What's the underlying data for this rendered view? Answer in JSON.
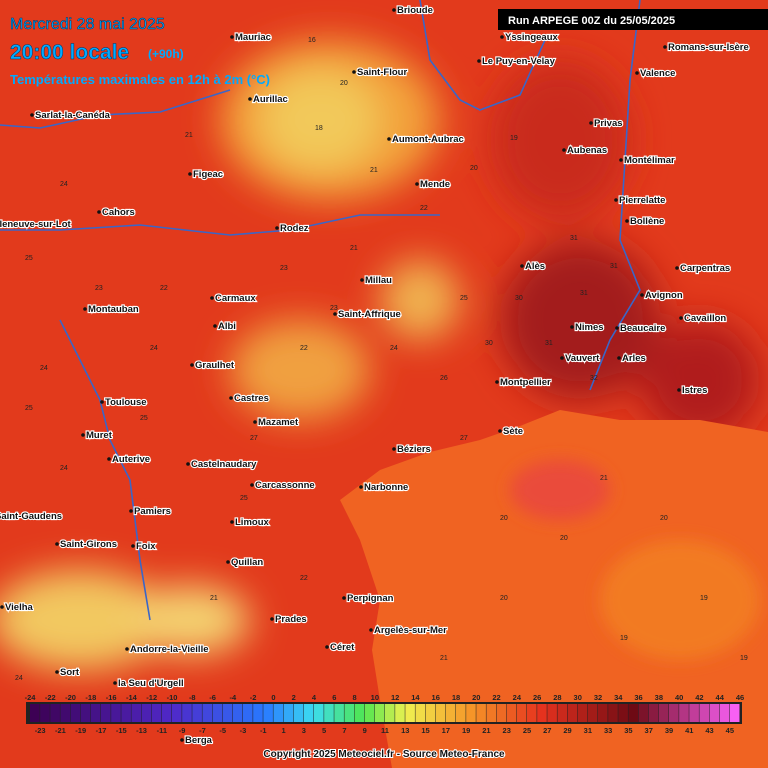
{
  "header": {
    "date": "Mercredi 28 mai 2025",
    "time": "20:00 locale",
    "offset": "(+90h)",
    "subtitle": "Températures maximales en 12h à 2m (°C)",
    "run": "Run ARPEGE 00Z du 25/05/2025"
  },
  "cities": [
    "Brioude",
    "Mauriac",
    "Yssingeaux",
    "Romans-sur-Isère",
    "Saint-Flour",
    "Le Puy-en-Velay",
    "Valence",
    "Aurillac",
    "Sarlat-la-Canéda",
    "Aumont-Aubrac",
    "Privas",
    "Aubenas",
    "Montélimar",
    "Figeac",
    "Mende",
    "Pierrelatte",
    "Cahors",
    "Villeneuve-sur-Lot",
    "Rodez",
    "Bollène",
    "Alès",
    "Carpentras",
    "Millau",
    "Avignon",
    "Carmaux",
    "Montauban",
    "Saint-Affrique",
    "Cavaillon",
    "Albi",
    "Nimes",
    "Beaucaire",
    "Vauvert",
    "Arles",
    "Graulhet",
    "Montpellier",
    "Istres",
    "Toulouse",
    "Castres",
    "Mazamet",
    "Sète",
    "Muret",
    "Béziers",
    "Auterive",
    "Castelnaudary",
    "Carcassonne",
    "Narbonne",
    "Pamiers",
    "Saint-Gaudens",
    "Limoux",
    "Saint-Girons",
    "Foix",
    "Quillan",
    "Perpignan",
    "Vielha",
    "Prades",
    "Argelès-sur-Mer",
    "Andorre-la-Vieille",
    "Céret",
    "Sort",
    "la Seu d'Urgell",
    "Berga"
  ],
  "temperatures": [
    24,
    21,
    16,
    20,
    25,
    23,
    24,
    18,
    21,
    20,
    19,
    25,
    24,
    22,
    23,
    21,
    31,
    31,
    30,
    31,
    32,
    30,
    31,
    25,
    26,
    27,
    22,
    21,
    21,
    20,
    20,
    19,
    19,
    20,
    24,
    25,
    27,
    22,
    23,
    24,
    22,
    20,
    19,
    21,
    24,
    25
  ],
  "scale": {
    "top": [
      -24,
      -22,
      -20,
      -18,
      -16,
      -14,
      -12,
      -10,
      -8,
      -6,
      -4,
      -2,
      0,
      2,
      4,
      6,
      8,
      10,
      12,
      14,
      16,
      18,
      20,
      22,
      24,
      26,
      28,
      30,
      32,
      34,
      36,
      38,
      40,
      42,
      44,
      46
    ],
    "bottom": [
      -23,
      -21,
      -19,
      -17,
      -15,
      -13,
      -11,
      -9,
      -7,
      -5,
      -3,
      -1,
      1,
      3,
      5,
      7,
      9,
      11,
      13,
      15,
      17,
      19,
      21,
      23,
      25,
      27,
      29,
      31,
      33,
      35,
      37,
      39,
      41,
      43,
      45
    ]
  },
  "copyright": "Copyright 2025 Meteociel.fr - Source Meteo-France"
}
